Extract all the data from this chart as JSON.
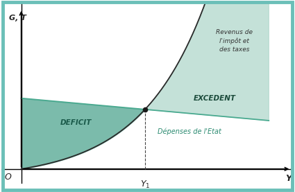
{
  "background_color": "#ffffff",
  "border_color": "#6bbfb8",
  "fill_deficit_color": "#5aaa96",
  "fill_excedent_color": "#b0d8cc",
  "curve_color": "#2a2a2a",
  "spending_line_color": "#4aaa90",
  "x_start": 0.0,
  "x_end": 10.0,
  "y1_x": 5.0,
  "g_level_at_0": 3.8,
  "g_level_at_end": 2.6,
  "k": 0.38,
  "ylabel": "G, T",
  "xlabel": "Y",
  "origin_label": "O",
  "y1_label": "$Y_1$",
  "deficit_label": "DEFICIT",
  "excedent_label": "EXCEDENT",
  "tax_label": "Revenus de\nl'impôt et\ndes taxes",
  "spending_label": "Dépenses de l'Etat",
  "ylim_top": 8.5,
  "ylim_bottom": -0.8,
  "xlim_left": -0.8,
  "xlim_right": 11.0
}
